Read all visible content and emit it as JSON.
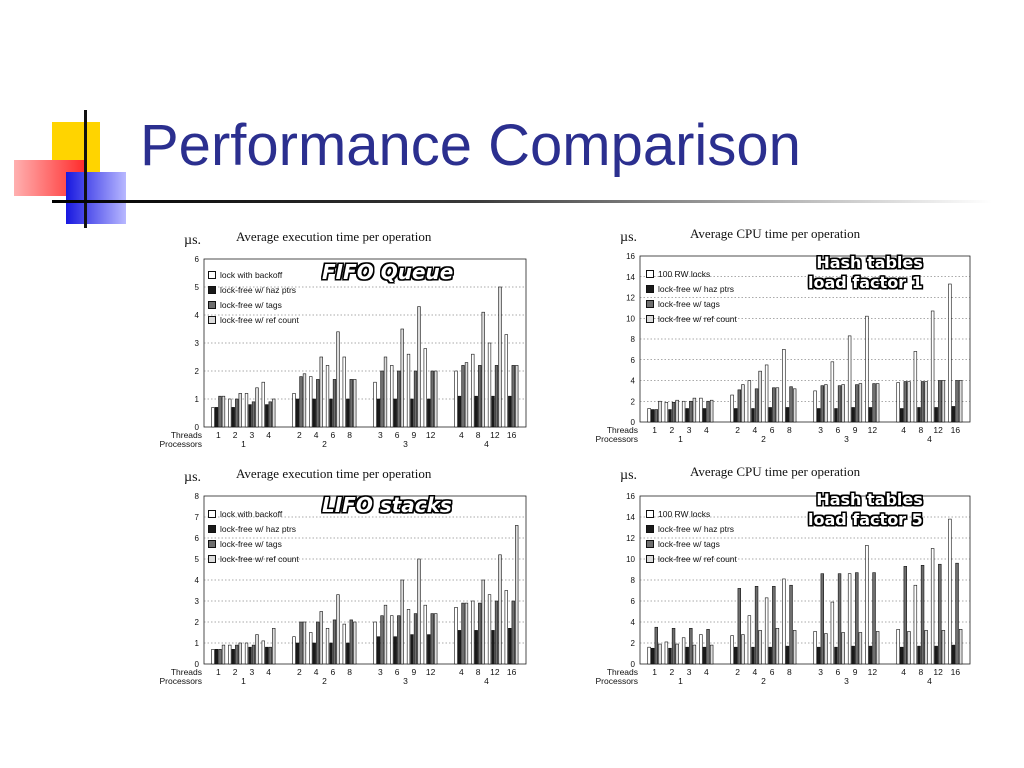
{
  "slide": {
    "title": "Performance Comparison"
  },
  "colors": {
    "title": "#2b2f8f",
    "accent_yellow": "#ffd700",
    "accent_red": "#ff3333",
    "accent_blue": "#2222dd"
  },
  "chart_data": [
    {
      "type": "bar",
      "title": "Average execution time per operation",
      "ylabel": "µs.",
      "annotation": "FIFO Queue",
      "ylim": [
        0,
        6
      ],
      "yticks": [
        0,
        1,
        2,
        3,
        4,
        5,
        6
      ],
      "grid": true,
      "legend_position": "top-left",
      "threads_label": "Threads",
      "processors_label": "Processors",
      "categories": [
        "1",
        "2",
        "3",
        "4",
        "2",
        "4",
        "6",
        "8",
        "3",
        "6",
        "9",
        "12",
        "4",
        "8",
        "12",
        "16"
      ],
      "processor_groups": [
        {
          "label": "1",
          "size": 4
        },
        {
          "label": "2",
          "size": 4
        },
        {
          "label": "3",
          "size": 4
        },
        {
          "label": "4",
          "size": 4
        }
      ],
      "series": [
        {
          "name": "lock with backoff",
          "fill": "#ffffff",
          "values": [
            0.7,
            1.0,
            1.2,
            1.6,
            1.2,
            1.8,
            2.2,
            2.5,
            1.6,
            2.2,
            2.6,
            2.8,
            2.0,
            2.6,
            3.0,
            3.3
          ]
        },
        {
          "name": "lock-free w/ haz ptrs",
          "fill": "#1a1a1a",
          "values": [
            0.7,
            0.7,
            0.8,
            0.8,
            1.0,
            1.0,
            1.0,
            1.0,
            1.0,
            1.0,
            1.0,
            1.0,
            1.1,
            1.1,
            1.1,
            1.1
          ]
        },
        {
          "name": "lock-free w/ tags",
          "fill": "#6e6e6e",
          "values": [
            1.1,
            1.0,
            0.9,
            0.9,
            1.8,
            1.7,
            1.7,
            1.7,
            2.0,
            2.0,
            2.0,
            2.0,
            2.2,
            2.2,
            2.2,
            2.2
          ]
        },
        {
          "name": "lock-free w/ ref count",
          "fill": "#dcdcdc",
          "values": [
            1.1,
            1.2,
            1.4,
            1.0,
            1.9,
            2.5,
            3.4,
            1.7,
            2.5,
            3.5,
            4.3,
            2.0,
            2.3,
            4.1,
            5.0,
            2.2
          ]
        }
      ]
    },
    {
      "type": "bar",
      "title": "Average CPU time per operation",
      "ylabel": "µs.",
      "annotation": [
        "Hash tables",
        "load factor 1"
      ],
      "ylim": [
        0,
        16
      ],
      "yticks": [
        0,
        2,
        4,
        6,
        8,
        10,
        12,
        14,
        16
      ],
      "grid": true,
      "legend_position": "top-left",
      "threads_label": "Threads",
      "processors_label": "Processors",
      "categories": [
        "1",
        "2",
        "3",
        "4",
        "2",
        "4",
        "6",
        "8",
        "3",
        "6",
        "9",
        "12",
        "4",
        "8",
        "12",
        "16"
      ],
      "processor_groups": [
        {
          "label": "1",
          "size": 4
        },
        {
          "label": "2",
          "size": 4
        },
        {
          "label": "3",
          "size": 4
        },
        {
          "label": "4",
          "size": 4
        }
      ],
      "series": [
        {
          "name": "100 RW locks",
          "fill": "#ffffff",
          "values": [
            1.3,
            1.9,
            2.0,
            2.3,
            2.6,
            4.0,
            5.5,
            7.0,
            3.0,
            5.8,
            8.3,
            10.2,
            3.8,
            6.8,
            10.7,
            13.3
          ]
        },
        {
          "name": "lock-free w/ haz ptrs",
          "fill": "#1a1a1a",
          "values": [
            1.2,
            1.2,
            1.3,
            1.3,
            1.3,
            1.3,
            1.4,
            1.4,
            1.3,
            1.3,
            1.4,
            1.4,
            1.3,
            1.4,
            1.4,
            1.5
          ]
        },
        {
          "name": "lock-free w/ tags",
          "fill": "#6e6e6e",
          "values": [
            1.2,
            1.9,
            2.0,
            2.0,
            3.1,
            3.2,
            3.3,
            3.4,
            3.5,
            3.5,
            3.6,
            3.7,
            3.9,
            3.9,
            4.0,
            4.0
          ]
        },
        {
          "name": "lock-free w/ ref count",
          "fill": "#dcdcdc",
          "values": [
            2.0,
            2.1,
            2.3,
            2.1,
            3.6,
            4.9,
            3.3,
            3.2,
            3.6,
            3.6,
            3.7,
            3.7,
            3.9,
            3.9,
            4.0,
            4.0
          ]
        }
      ]
    },
    {
      "type": "bar",
      "title": "Average execution time per operation",
      "ylabel": "µs.",
      "annotation": "LIFO stacks",
      "ylim": [
        0,
        8
      ],
      "yticks": [
        0,
        1,
        2,
        3,
        4,
        5,
        6,
        7,
        8
      ],
      "grid": true,
      "legend_position": "top-left",
      "threads_label": "Threads",
      "processors_label": "Processors",
      "categories": [
        "1",
        "2",
        "3",
        "4",
        "2",
        "4",
        "6",
        "8",
        "3",
        "6",
        "9",
        "12",
        "4",
        "8",
        "12",
        "16"
      ],
      "processor_groups": [
        {
          "label": "1",
          "size": 4
        },
        {
          "label": "2",
          "size": 4
        },
        {
          "label": "3",
          "size": 4
        },
        {
          "label": "4",
          "size": 4
        }
      ],
      "series": [
        {
          "name": "lock with backoff",
          "fill": "#ffffff",
          "values": [
            0.7,
            0.9,
            1.0,
            1.1,
            1.3,
            1.5,
            1.7,
            1.9,
            2.0,
            2.3,
            2.6,
            2.8,
            2.7,
            3.0,
            3.3,
            3.5
          ]
        },
        {
          "name": "lock-free w/ haz ptrs",
          "fill": "#1a1a1a",
          "values": [
            0.7,
            0.7,
            0.8,
            0.8,
            1.0,
            1.0,
            1.0,
            1.0,
            1.3,
            1.3,
            1.4,
            1.4,
            1.6,
            1.6,
            1.6,
            1.7
          ]
        },
        {
          "name": "lock-free w/ tags",
          "fill": "#6e6e6e",
          "values": [
            0.7,
            0.9,
            0.9,
            0.8,
            2.0,
            2.0,
            2.1,
            2.1,
            2.3,
            2.3,
            2.4,
            2.4,
            2.9,
            2.9,
            3.0,
            3.0
          ]
        },
        {
          "name": "lock-free w/ ref count",
          "fill": "#dcdcdc",
          "values": [
            0.9,
            1.0,
            1.4,
            1.7,
            2.0,
            2.5,
            3.3,
            2.0,
            2.8,
            4.0,
            5.0,
            2.4,
            2.9,
            4.0,
            5.2,
            6.6
          ]
        }
      ]
    },
    {
      "type": "bar",
      "title": "Average CPU time per operation",
      "ylabel": "µs.",
      "annotation": [
        "Hash tables",
        "load factor 5"
      ],
      "ylim": [
        0,
        16
      ],
      "yticks": [
        0,
        2,
        4,
        6,
        8,
        10,
        12,
        14,
        16
      ],
      "grid": true,
      "legend_position": "top-left",
      "threads_label": "Threads",
      "processors_label": "Processors",
      "categories": [
        "1",
        "2",
        "3",
        "4",
        "2",
        "4",
        "6",
        "8",
        "3",
        "6",
        "9",
        "12",
        "4",
        "8",
        "12",
        "16"
      ],
      "processor_groups": [
        {
          "label": "1",
          "size": 4
        },
        {
          "label": "2",
          "size": 4
        },
        {
          "label": "3",
          "size": 4
        },
        {
          "label": "4",
          "size": 4
        }
      ],
      "series": [
        {
          "name": "100 RW locks",
          "fill": "#ffffff",
          "values": [
            1.6,
            2.1,
            2.5,
            2.8,
            2.7,
            4.6,
            6.3,
            8.1,
            3.1,
            5.9,
            8.6,
            11.3,
            3.3,
            7.5,
            11.0,
            13.8
          ]
        },
        {
          "name": "lock-free w/ haz ptrs",
          "fill": "#1a1a1a",
          "values": [
            1.5,
            1.5,
            1.6,
            1.6,
            1.6,
            1.6,
            1.6,
            1.7,
            1.6,
            1.6,
            1.7,
            1.7,
            1.6,
            1.7,
            1.7,
            1.8
          ]
        },
        {
          "name": "lock-free w/ tags",
          "fill": "#6e6e6e",
          "values": [
            3.5,
            3.4,
            3.4,
            3.3,
            7.2,
            7.4,
            7.4,
            7.5,
            8.6,
            8.6,
            8.7,
            8.7,
            9.3,
            9.4,
            9.5,
            9.6
          ]
        },
        {
          "name": "lock-free w/ ref count",
          "fill": "#dcdcdc",
          "values": [
            1.9,
            1.9,
            1.8,
            1.8,
            2.8,
            3.2,
            3.4,
            3.2,
            2.9,
            3.0,
            3.0,
            3.1,
            3.1,
            3.2,
            3.2,
            3.3
          ]
        }
      ]
    }
  ]
}
